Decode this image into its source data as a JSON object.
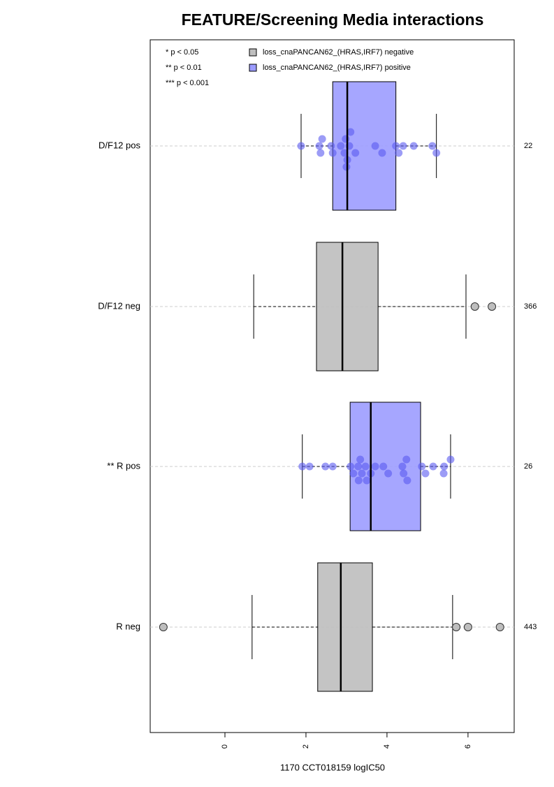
{
  "chart_data": {
    "type": "box",
    "title": "FEATURE/Screening Media interactions",
    "x_label": "1170 CCT018159 logIC50",
    "xlim": [
      -1.845,
      7.14
    ],
    "xticks": [
      0,
      2,
      4,
      6
    ],
    "notes": [
      "* p < 0.05",
      "** p < 0.01",
      "*** p < 0.001"
    ],
    "legend": [
      {
        "name": "loss_cnaPANCAN62_(HRAS,IRF7) negative",
        "color": "#bebebe"
      },
      {
        "name": "loss_cnaPANCAN62_(HRAS,IRF7) positive",
        "color": "#9c9cff"
      }
    ],
    "groups": [
      {
        "label": "D/F12 pos",
        "n": 22,
        "color": "#9c9cff",
        "point_color": "#5a5af0",
        "whisker_low": 1.88,
        "q1": 2.66,
        "median": 3.02,
        "q3": 4.22,
        "whisker_high": 5.22,
        "outliers": [],
        "points": [
          1.88,
          2.33,
          2.36,
          2.4,
          2.62,
          2.66,
          2.86,
          2.95,
          2.98,
          3.02,
          3.07,
          3.1,
          3.22,
          3.71,
          3.88,
          4.22,
          4.29,
          4.4,
          4.66,
          5.12,
          5.22,
          3.0
        ]
      },
      {
        "label": "D/F12 neg",
        "n": 366,
        "color": "#bebebe",
        "point_color": "#b4b4b4",
        "whisker_low": 0.71,
        "q1": 2.26,
        "median": 2.9,
        "q3": 3.78,
        "whisker_high": 5.95,
        "outliers": [
          6.17,
          6.59
        ],
        "points": []
      },
      {
        "label": "** R pos",
        "n": 26,
        "color": "#9c9cff",
        "point_color": "#5a5af0",
        "whisker_low": 1.91,
        "q1": 3.09,
        "median": 3.6,
        "q3": 4.83,
        "whisker_high": 5.57,
        "outliers": [],
        "points": [
          1.91,
          2.09,
          2.48,
          2.66,
          3.1,
          3.17,
          3.29,
          3.34,
          3.38,
          3.47,
          3.5,
          3.6,
          3.71,
          3.91,
          4.03,
          4.38,
          4.41,
          4.48,
          4.86,
          4.95,
          5.14,
          5.41,
          5.4,
          5.57,
          3.3,
          4.5
        ]
      },
      {
        "label": "R neg",
        "n": 443,
        "color": "#bebebe",
        "point_color": "#b4b4b4",
        "whisker_low": 0.67,
        "q1": 2.29,
        "median": 2.86,
        "q3": 3.64,
        "whisker_high": 5.62,
        "outliers": [
          -1.52,
          5.71,
          6.0,
          6.79
        ],
        "points": []
      }
    ]
  }
}
